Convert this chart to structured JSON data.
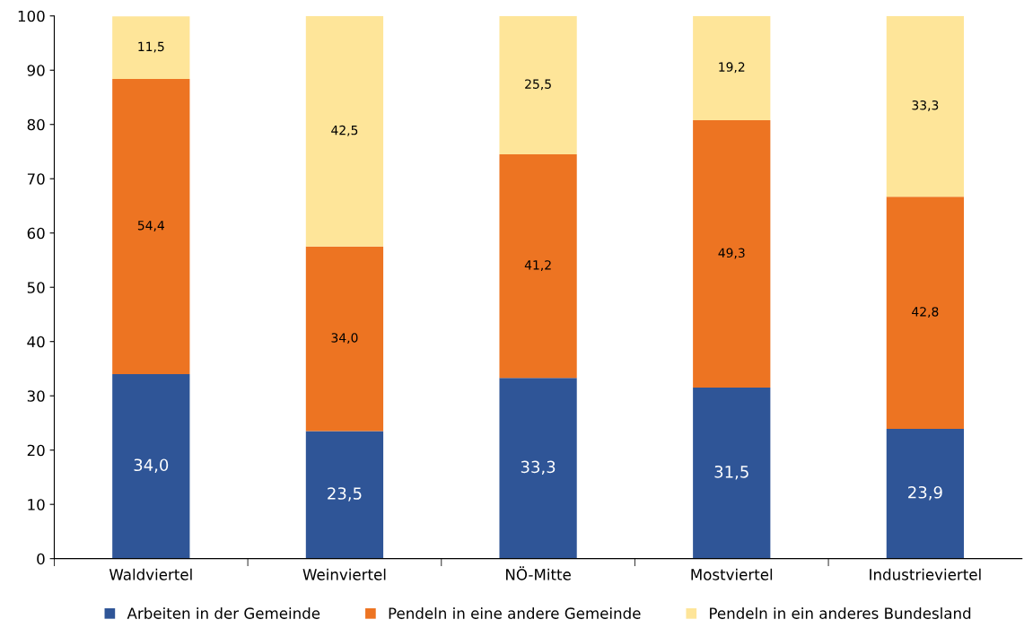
{
  "chart_data": {
    "type": "bar",
    "stacked": true,
    "categories": [
      "Waldviertel",
      "Weinviertel",
      "NÖ-Mitte",
      "Mostviertel",
      "Industrieviertel"
    ],
    "series": [
      {
        "name": "Arbeiten in der Gemeinde",
        "color": "#2f5597",
        "values": [
          34.0,
          23.5,
          33.3,
          31.5,
          23.9
        ],
        "value_labels": [
          "34,0",
          "23,5",
          "33,3",
          "31,5",
          "23,9"
        ]
      },
      {
        "name": "Pendeln in eine andere Gemeinde",
        "color": "#ed7422",
        "values": [
          54.4,
          34.0,
          41.2,
          49.3,
          42.8
        ],
        "value_labels": [
          "54,4",
          "34,0",
          "41,2",
          "49,3",
          "42,8"
        ]
      },
      {
        "name": "Pendeln in ein anderes Bundesland",
        "color": "#fee599",
        "values": [
          11.5,
          42.5,
          25.5,
          19.2,
          33.3
        ],
        "value_labels": [
          "11,5",
          "42,5",
          "25,5",
          "19,2",
          "33,3"
        ]
      }
    ],
    "ylim": [
      0,
      100
    ],
    "yticks": [
      0,
      10,
      20,
      30,
      40,
      50,
      60,
      70,
      80,
      90,
      100
    ],
    "grid": false,
    "legend": "bottom"
  }
}
